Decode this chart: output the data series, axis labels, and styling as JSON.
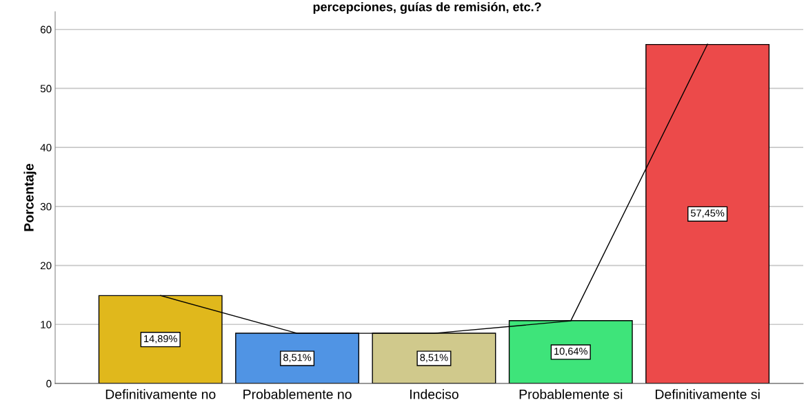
{
  "chart_data": {
    "type": "bar",
    "title": "percepciones, guías de remisión, etc.?",
    "ylabel": "Porcentaje",
    "categories": [
      "Definitivamente no",
      "Probablemente no",
      "Indeciso",
      "Probablemente si",
      "Definitivamente si"
    ],
    "series": [
      {
        "colors": [
          "#e0b81c",
          "#5094e4",
          "#d0c98c",
          "#3ee47a",
          "#ec4a4a"
        ],
        "values": [
          14.89,
          8.51,
          8.51,
          10.64,
          57.45
        ],
        "value_labels": [
          "14,89%",
          "8,51%",
          "8,51%",
          "10,64%",
          "57,45%"
        ]
      },
      {
        "type": "line",
        "color": "#000000",
        "values": [
          14.9,
          8.5,
          8.5,
          10.6,
          57.5
        ]
      }
    ],
    "ylim": [
      0,
      63
    ],
    "yticks": [
      0,
      10,
      20,
      30,
      40,
      50,
      60
    ],
    "grid": "y"
  }
}
